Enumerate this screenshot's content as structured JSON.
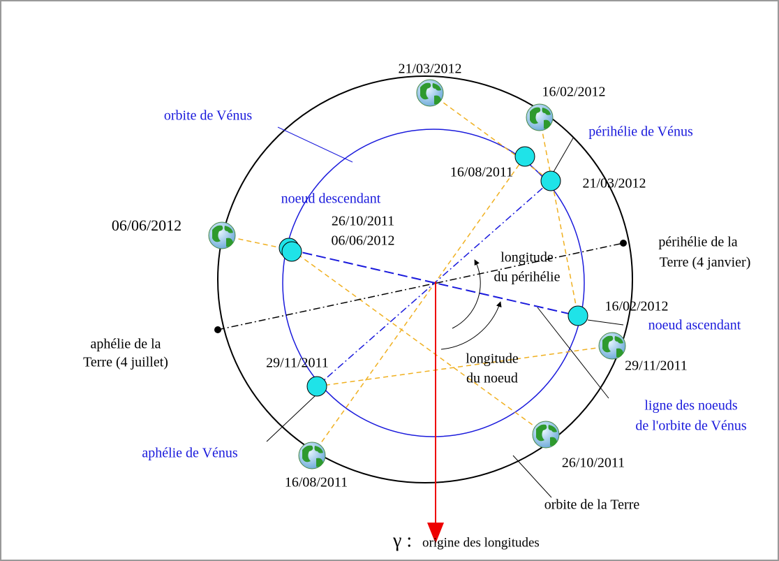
{
  "labels": [
    "21/03/2012",
    "16/02/2012",
    "orbite de Vénus",
    "périhélie de Vénus",
    "16/08/2011",
    "21/03/2012",
    "noeud descendant",
    "26/10/2011",
    "06/06/2012",
    "06/06/2012",
    "périhélie de la",
    "Terre (4 janvier)",
    "longitude",
    "du périhélie",
    "16/02/2012",
    "noeud ascendant",
    "aphélie de la",
    "Terre (4 juillet)",
    "29/11/2011",
    "longitude",
    "du noeud",
    "29/11/2011",
    "ligne des noeuds",
    "de l'orbite de Vénus",
    "aphélie de Vénus",
    "26/10/2011",
    "16/08/2011",
    "orbite de la Terre",
    "γ :",
    "origine des longitudes"
  ]
}
